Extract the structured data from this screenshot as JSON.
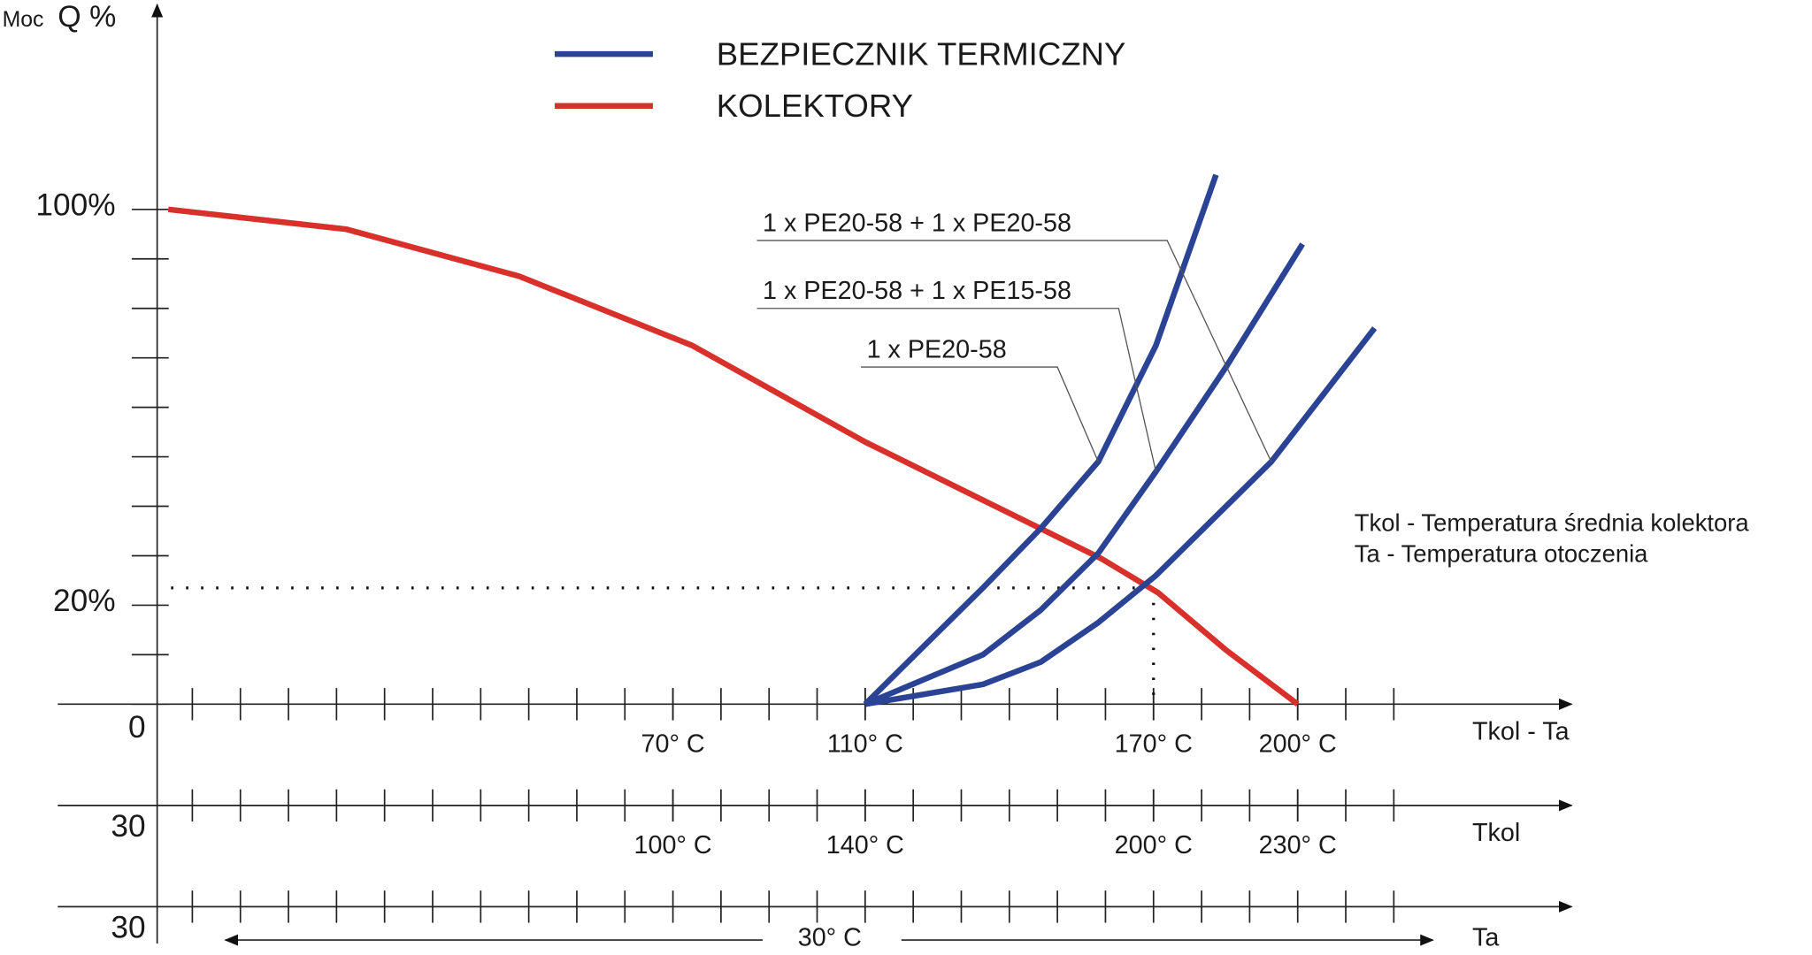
{
  "chart_data": {
    "type": "line",
    "y_label_prefix": "Moc",
    "y_label": "Q %",
    "legend": [
      {
        "name": "BEZPIECZNIK TERMICZNY",
        "color": "#2b4394"
      },
      {
        "name": "KOLEKTORY",
        "color": "#d8302b"
      }
    ],
    "ylim": [
      0,
      140
    ],
    "yticks": [
      0,
      {
        "value": 20,
        "label": "20%"
      },
      {
        "value": 100,
        "label": "100%"
      }
    ],
    "yminorticks": [
      10,
      30,
      40,
      50,
      60,
      70,
      80,
      90
    ],
    "xminorticks": [
      -30,
      -20,
      -10,
      0,
      10,
      20,
      30,
      40,
      50,
      60,
      70,
      80,
      90,
      100,
      110,
      120,
      130,
      140,
      150,
      160,
      170,
      180,
      190,
      200,
      210,
      220
    ],
    "axes": [
      {
        "title": "Tkol - Ta",
        "xlim": [
          -58,
          257
        ],
        "ticks": [
          {
            "value": 70,
            "label": "70° C"
          },
          {
            "value": 110,
            "label": "110° C"
          },
          {
            "value": 170,
            "label": "170° C"
          },
          {
            "value": 200,
            "label": "200° C"
          }
        ]
      },
      {
        "title": "Tkol",
        "start": 30,
        "xlim": [
          -28,
          287
        ],
        "ticks": [
          {
            "value": 100,
            "label": "100° C"
          },
          {
            "value": 140,
            "label": "140° C"
          },
          {
            "value": 200,
            "label": "200° C"
          },
          {
            "value": 230,
            "label": "230° C"
          }
        ]
      },
      {
        "title": "Ta",
        "start": 30,
        "value_label": "30° C"
      }
    ],
    "series": [
      {
        "name": "KOLEKTORY",
        "color": "#d8302b",
        "x": [
          -35,
          2,
          38,
          74,
          110,
          135,
          159,
          171,
          185,
          200
        ],
        "values": [
          100,
          96,
          86.5,
          72.5,
          53,
          41,
          29.5,
          22.5,
          11,
          0
        ]
      },
      {
        "label": "1 x PE20-58",
        "color": "#2b4394",
        "x": [
          110,
          122.5,
          134.5,
          146.5,
          158.5,
          170.5,
          183
        ],
        "values": [
          0,
          12,
          23.5,
          35.5,
          49,
          72.5,
          107
        ]
      },
      {
        "label": "1 x PE20-58 + 1 x PE15-58",
        "color": "#2b4394",
        "x": [
          110,
          134.5,
          146.5,
          158.5,
          170.5,
          185,
          201
        ],
        "values": [
          0,
          10,
          19,
          30.5,
          47,
          68,
          93
        ]
      },
      {
        "label": "1 x PE20-58 + 1 x PE20-58",
        "color": "#2b4394",
        "x": [
          110,
          134.5,
          146.5,
          158.5,
          170.5,
          194.5,
          216
        ],
        "values": [
          0,
          4,
          8.5,
          16.5,
          26,
          49,
          76
        ]
      }
    ],
    "reference_point": {
      "x": 170,
      "y": 23.5
    },
    "notes": [
      "Tkol - Temperatura średnia kolektora",
      "Ta - Temperatura otoczenia"
    ]
  }
}
